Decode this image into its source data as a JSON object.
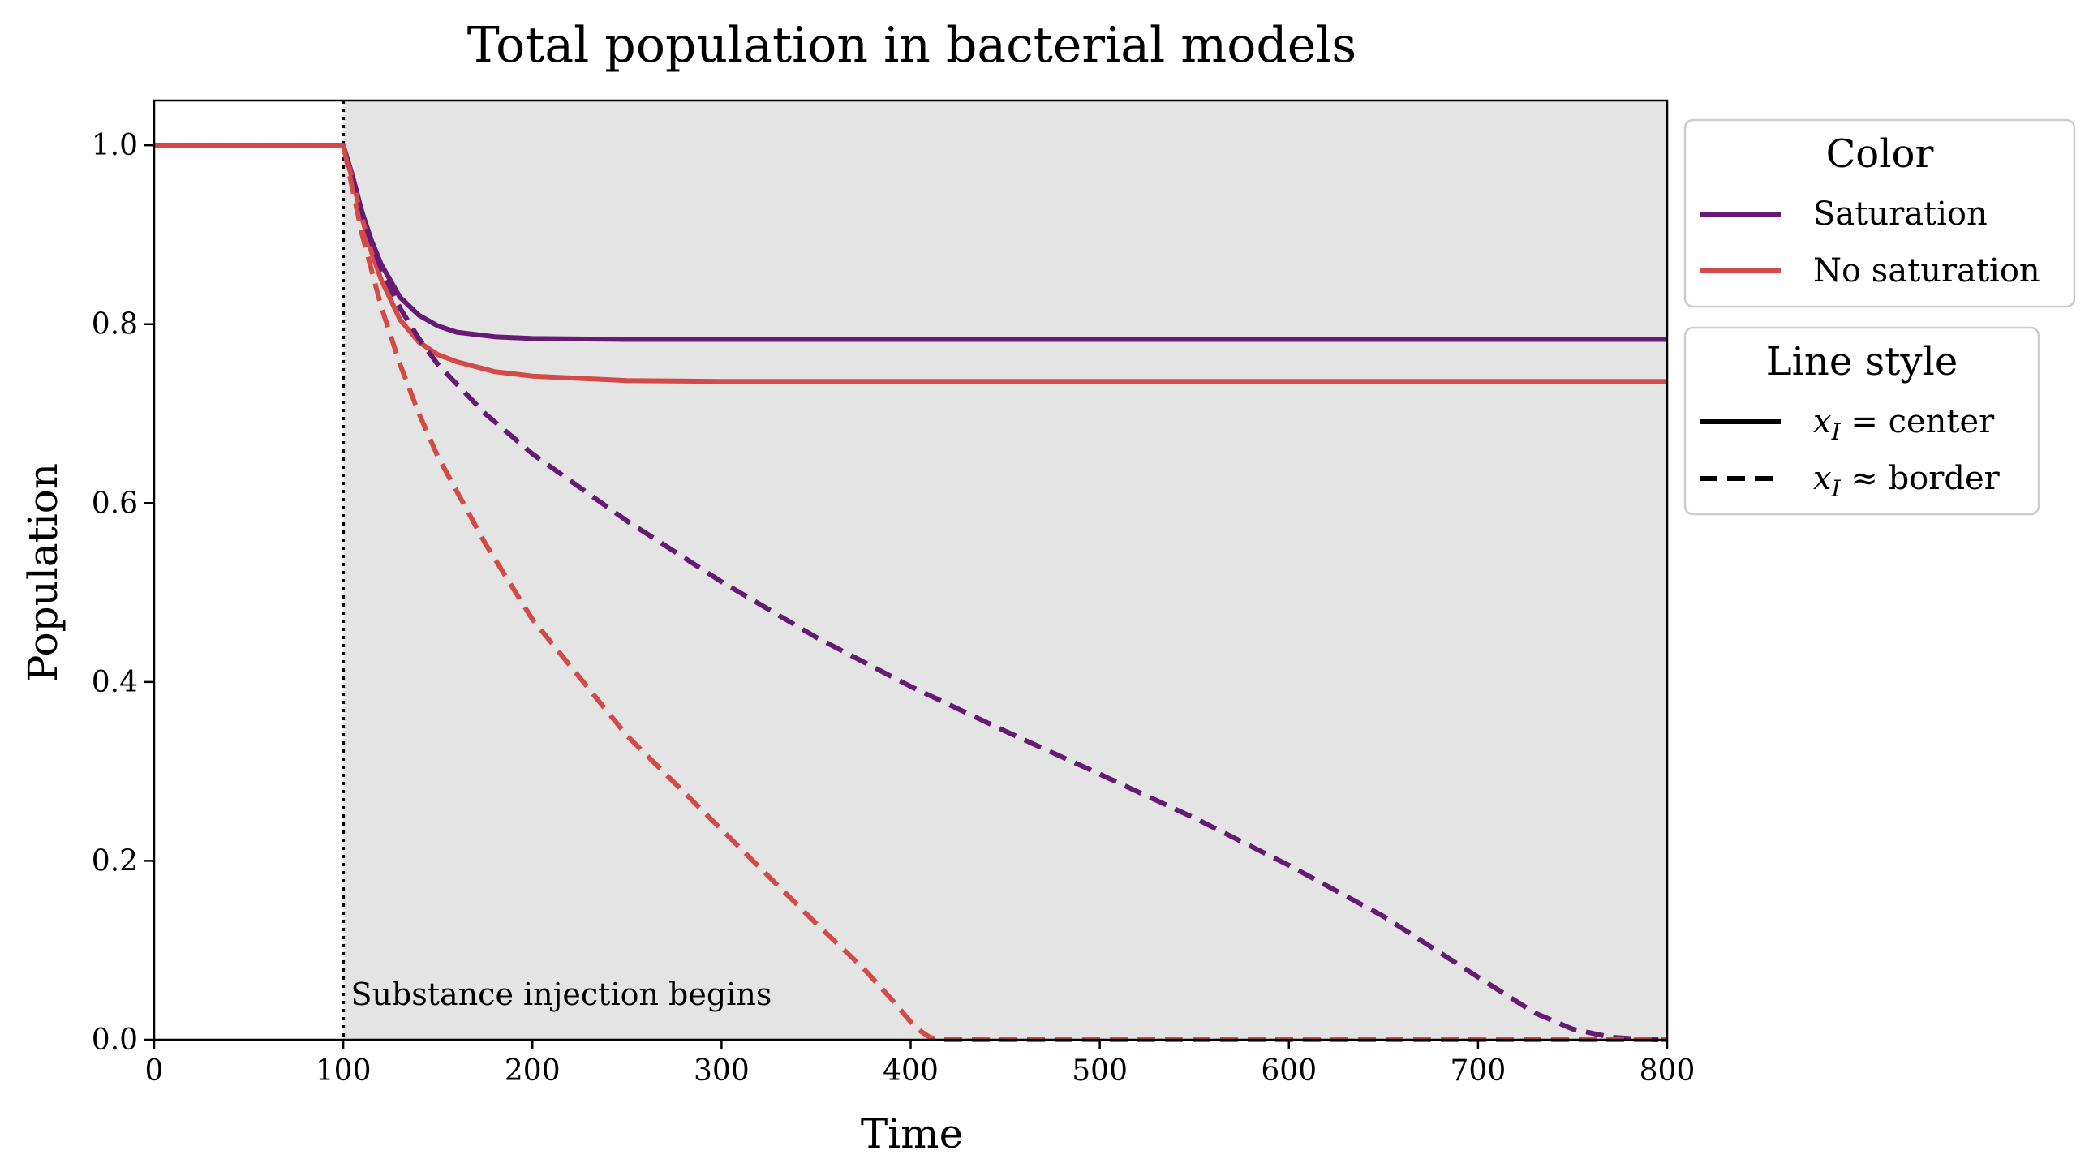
{
  "chart_data": {
    "type": "line",
    "title": "Total population in bacterial models",
    "xlabel": "Time",
    "ylabel": "Population",
    "xlim": [
      0,
      800
    ],
    "ylim": [
      0,
      1.05
    ],
    "xticks": [
      "0",
      "100",
      "200",
      "300",
      "400",
      "500",
      "600",
      "700",
      "800"
    ],
    "yticks": [
      "0.0",
      "0.2",
      "0.4",
      "0.6",
      "0.8",
      "1.0"
    ],
    "grid": false,
    "shaded_region": {
      "x_start": 100,
      "x_end": 800,
      "color": "#e4e4e4"
    },
    "vline": {
      "x": 100,
      "style": "dotted",
      "color": "#000000"
    },
    "annotation": {
      "text": "Substance injection begins",
      "x": 104,
      "y": 0.05
    },
    "colors": {
      "saturation": "#651a74",
      "no_saturation": "#d34a47"
    },
    "series": [
      {
        "name": "Saturation, x_I = center",
        "color": "#651a74",
        "style": "solid",
        "x": [
          0,
          100,
          105,
          110,
          115,
          120,
          130,
          140,
          150,
          160,
          180,
          200,
          250,
          300,
          400,
          500,
          600,
          700,
          800
        ],
        "y": [
          1.0,
          1.0,
          0.965,
          0.925,
          0.893,
          0.867,
          0.83,
          0.81,
          0.798,
          0.791,
          0.786,
          0.784,
          0.783,
          0.783,
          0.783,
          0.783,
          0.783,
          0.783,
          0.783
        ]
      },
      {
        "name": "No saturation, x_I = center",
        "color": "#d34a47",
        "style": "solid",
        "x": [
          0,
          100,
          105,
          110,
          115,
          120,
          130,
          140,
          150,
          160,
          180,
          200,
          250,
          300,
          400,
          500,
          600,
          700,
          800
        ],
        "y": [
          1.0,
          1.0,
          0.96,
          0.918,
          0.88,
          0.85,
          0.805,
          0.78,
          0.766,
          0.758,
          0.747,
          0.742,
          0.737,
          0.736,
          0.736,
          0.736,
          0.736,
          0.736,
          0.736
        ]
      },
      {
        "name": "Saturation, x_I ≈ border",
        "color": "#651a74",
        "style": "dashed",
        "x": [
          0,
          100,
          105,
          110,
          120,
          130,
          140,
          150,
          175,
          200,
          250,
          300,
          350,
          400,
          450,
          500,
          550,
          600,
          650,
          700,
          730,
          750,
          770,
          790,
          800
        ],
        "y": [
          1.0,
          1.0,
          0.96,
          0.92,
          0.862,
          0.818,
          0.784,
          0.755,
          0.7,
          0.655,
          0.58,
          0.512,
          0.45,
          0.395,
          0.345,
          0.297,
          0.248,
          0.195,
          0.138,
          0.07,
          0.03,
          0.012,
          0.003,
          0.0,
          0.0
        ]
      },
      {
        "name": "No saturation, x_I ≈ border",
        "color": "#d34a47",
        "style": "dashed",
        "x": [
          0,
          100,
          105,
          110,
          120,
          130,
          140,
          150,
          175,
          200,
          250,
          300,
          350,
          375,
          390,
          400,
          405,
          410,
          415,
          500,
          600,
          700,
          800
        ],
        "y": [
          1.0,
          1.0,
          0.95,
          0.9,
          0.82,
          0.755,
          0.7,
          0.652,
          0.555,
          0.47,
          0.34,
          0.235,
          0.13,
          0.08,
          0.045,
          0.02,
          0.01,
          0.003,
          0.0,
          0.0,
          0.0,
          0.0,
          0.0
        ]
      }
    ],
    "legends": [
      {
        "title": "Color",
        "placement": "outside-right-top",
        "entries": [
          {
            "label": "Saturation",
            "color": "#651a74",
            "style": "solid"
          },
          {
            "label": "No saturation",
            "color": "#d34a47",
            "style": "solid"
          }
        ]
      },
      {
        "title": "Line style",
        "placement": "outside-right",
        "entries": [
          {
            "label_var": "x",
            "label_sub": "I",
            "label_rest": " = center",
            "color": "#000000",
            "style": "solid"
          },
          {
            "label_var": "x",
            "label_sub": "I",
            "label_rest": " ≈ border",
            "color": "#000000",
            "style": "dashed"
          }
        ]
      }
    ]
  }
}
